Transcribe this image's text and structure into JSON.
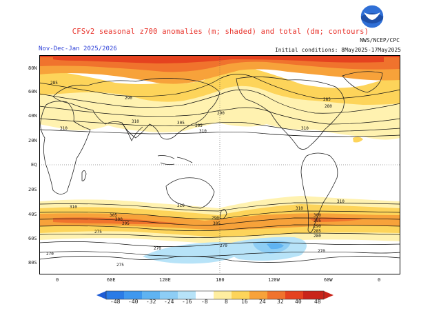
{
  "header": {
    "title": "CFSv2 seasonal z700 anomalies (m; shaded) and total (dm; contours)",
    "subtitle": "Nov-Dec-Jan 2025/2026",
    "initial_conditions": "Initial conditions: 8May2025-17May2025",
    "credit": "NWS/NCEP/CPC"
  },
  "logo": {
    "icon": "noaa-logo"
  },
  "map": {
    "lat_labels": [
      "80N",
      "60N",
      "40N",
      "20N",
      "EQ",
      "20S",
      "40S",
      "60S",
      "80S"
    ],
    "lon_labels": [
      "0",
      "60E",
      "120E",
      "180",
      "120W",
      "60W",
      "0"
    ],
    "contour_labels": [
      "285",
      "290",
      "310",
      "305",
      "310",
      "310",
      "290",
      "305",
      "310",
      "285",
      "280",
      "310",
      "310",
      "305",
      "300",
      "295",
      "290",
      "305",
      "310",
      "310",
      "300",
      "295",
      "290",
      "285",
      "280",
      "275",
      "270",
      "270",
      "275",
      "270",
      "270"
    ],
    "colors": {
      "ocean": "#ffffff",
      "coast": "#222222",
      "contour": "#111111"
    }
  },
  "colorbar": {
    "labels": [
      "-48",
      "-40",
      "-32",
      "-24",
      "-16",
      "-8",
      "8",
      "16",
      "24",
      "32",
      "40",
      "48"
    ],
    "colors": [
      "#1f5dd6",
      "#2a7be6",
      "#3f98ef",
      "#5fb3f2",
      "#8dcdf5",
      "#b7e3f8",
      "#ffffff",
      "#ffeea0",
      "#fdd45a",
      "#f7a23a",
      "#f0732d",
      "#e5421f",
      "#c9241a"
    ]
  }
}
